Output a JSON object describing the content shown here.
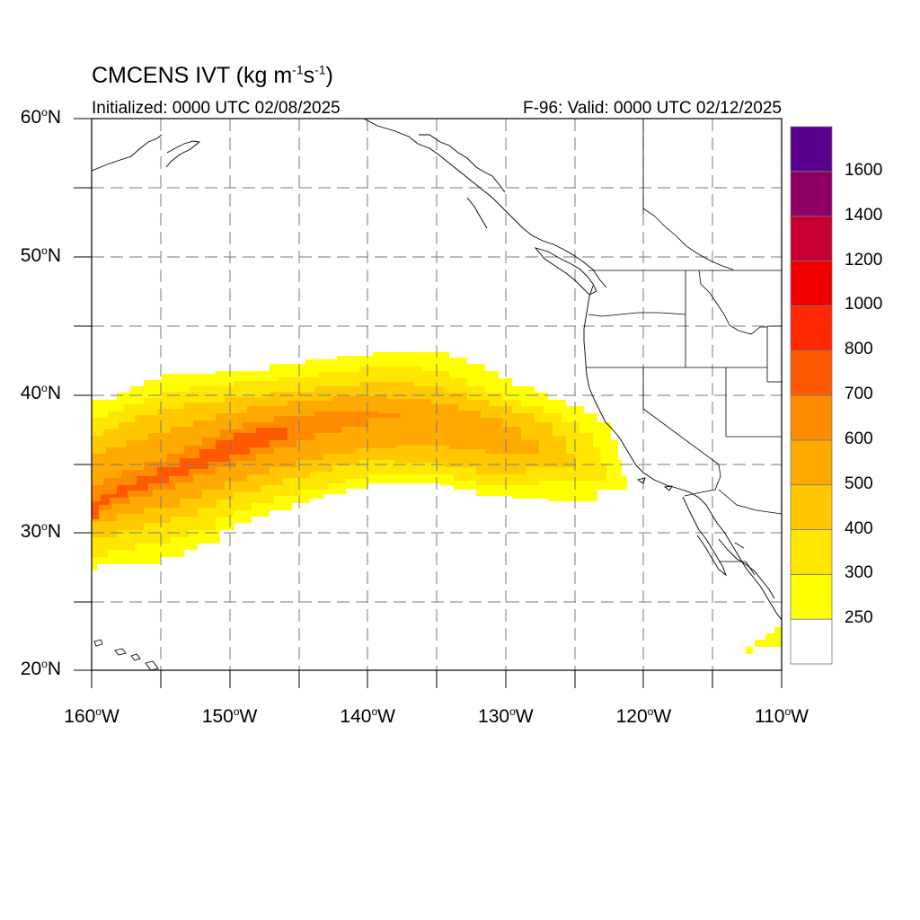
{
  "map": {
    "title": "CMCENS IVT (kg m",
    "title_sup1": "-1",
    "title_mid": "s",
    "title_sup2": "-1",
    "title_end": ")",
    "init_text": "Initialized: 0000 UTC 02/08/2025",
    "valid_text": "F-96: Valid: 0000 UTC 02/12/2025",
    "lat_labels": [
      {
        "deg": "60",
        "hemi": "N",
        "lat": 60
      },
      {
        "deg": "50",
        "hemi": "N",
        "lat": 50
      },
      {
        "deg": "40",
        "hemi": "N",
        "lat": 40
      },
      {
        "deg": "30",
        "hemi": "N",
        "lat": 30
      },
      {
        "deg": "20",
        "hemi": "N",
        "lat": 20
      }
    ],
    "lon_labels": [
      {
        "deg": "160",
        "hemi": "W",
        "lon": -160
      },
      {
        "deg": "150",
        "hemi": "W",
        "lon": -150
      },
      {
        "deg": "140",
        "hemi": "W",
        "lon": -140
      },
      {
        "deg": "130",
        "hemi": "W",
        "lon": -130
      },
      {
        "deg": "120",
        "hemi": "W",
        "lon": -120
      },
      {
        "deg": "110",
        "hemi": "W",
        "lon": -110
      }
    ],
    "extent": {
      "lon_min": -160,
      "lon_max": -110,
      "lat_min": 20,
      "lat_max": 60
    }
  },
  "colorbar": {
    "levels": [
      "250",
      "300",
      "400",
      "500",
      "600",
      "700",
      "800",
      "1000",
      "1200",
      "1400",
      "1600"
    ],
    "colors": [
      "#ffffff",
      "#ffff00",
      "#ffe600",
      "#ffc800",
      "#ffaa00",
      "#ff8c00",
      "#ff5a00",
      "#ff2800",
      "#f00000",
      "#c80032",
      "#8c0064",
      "#5a008c"
    ]
  }
}
